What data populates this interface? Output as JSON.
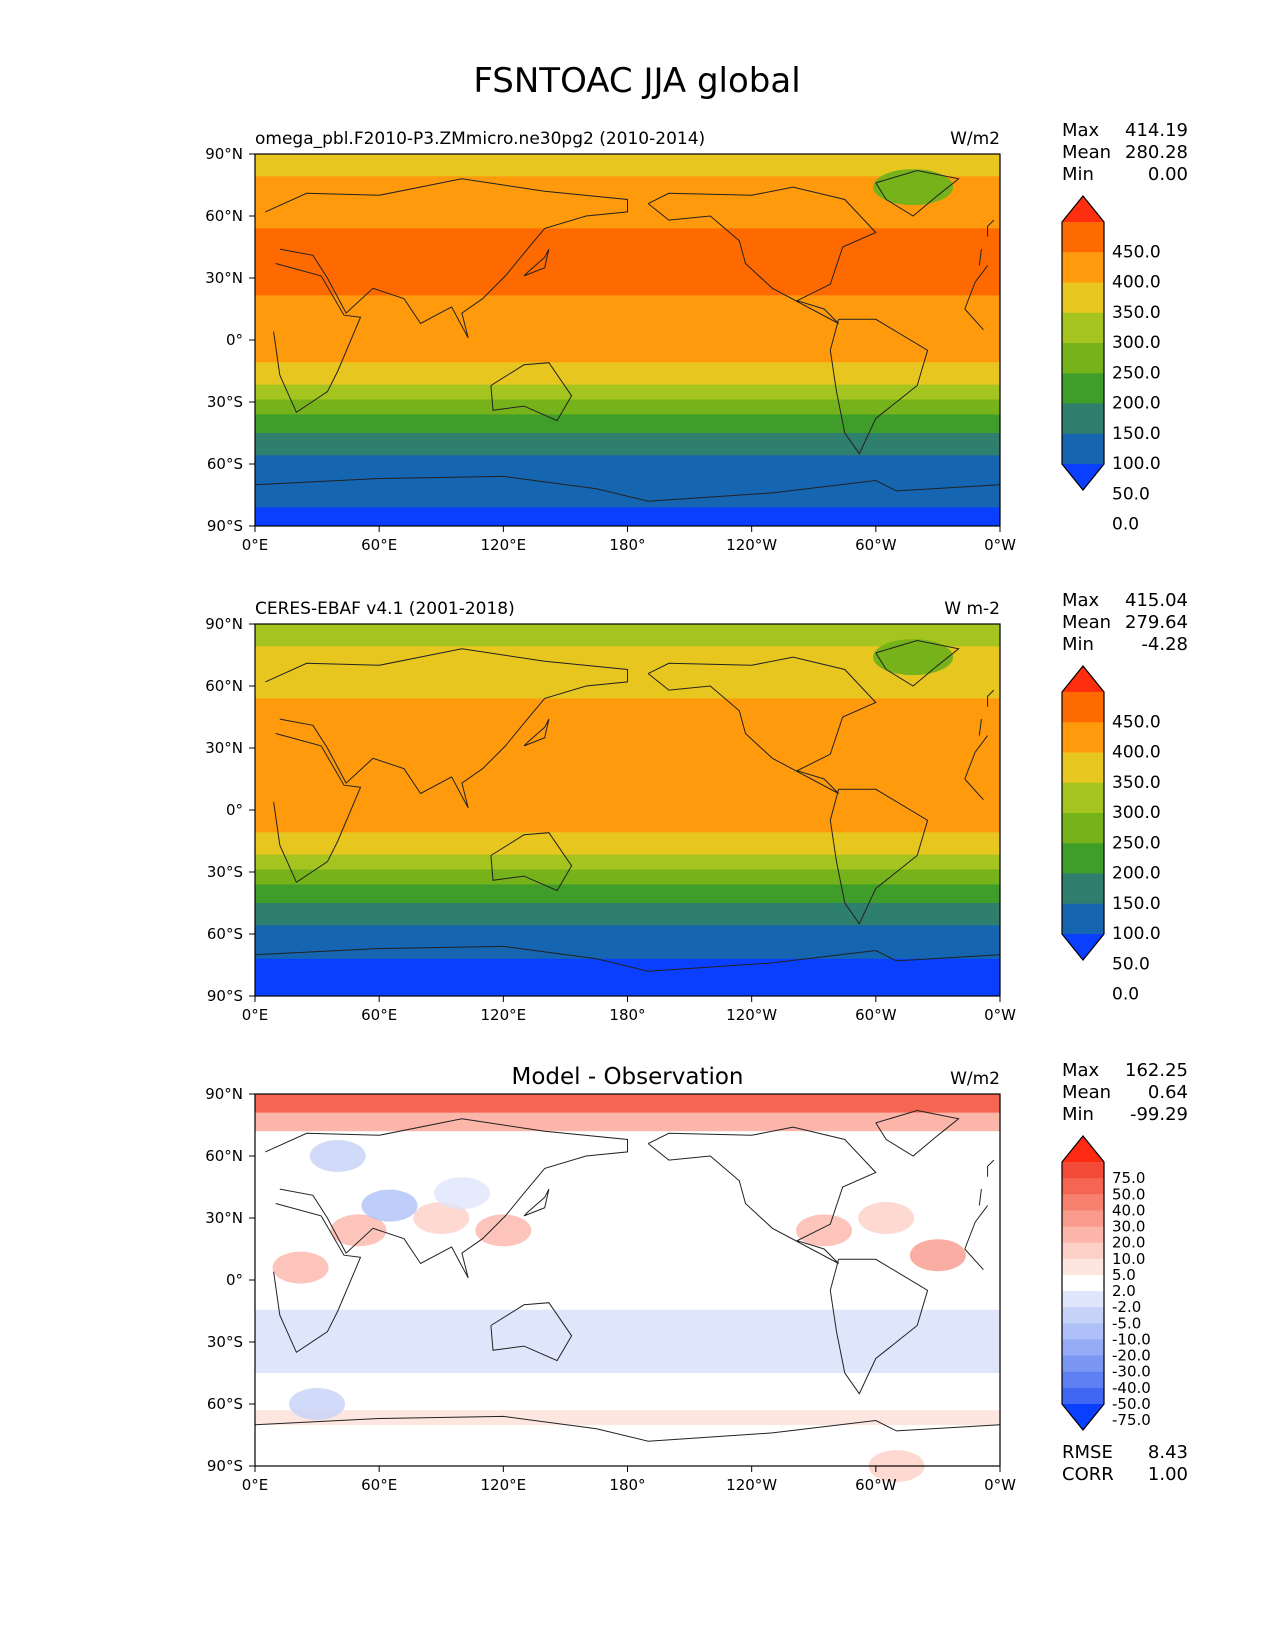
{
  "title": "FSNTOAC JJA global",
  "xticks": [
    "0°E",
    "60°E",
    "120°E",
    "180°",
    "120°W",
    "60°W",
    "0°W"
  ],
  "yticks": [
    "90°N",
    "60°N",
    "30°N",
    "0°",
    "30°S",
    "60°S",
    "90°S"
  ],
  "panels": [
    {
      "left_title": "omega_pbl.F2010-P3.ZMmicro.ne30pg2 (2010-2014)",
      "center_title": "",
      "units": "W/m2",
      "stats": [
        {
          "label": "Max",
          "value": "414.19"
        },
        {
          "label": "Mean",
          "value": "280.28"
        },
        {
          "label": "Min",
          "value": "0.00"
        }
      ],
      "colorbar": {
        "labels": [
          "450.0",
          "400.0",
          "350.0",
          "300.0",
          "250.0",
          "200.0",
          "150.0",
          "100.0",
          "50.0",
          "0.0"
        ],
        "colors": [
          "#ff2e0f",
          "#ff6a00",
          "#ff9a0d",
          "#e8c620",
          "#a6c41f",
          "#76b21a",
          "#3f9e2a",
          "#2f7f6e",
          "#1565b0",
          "#0a3fff"
        ]
      },
      "extra_stats": []
    },
    {
      "left_title": "CERES-EBAF v4.1 (2001-2018)",
      "center_title": "",
      "units": "W m-2",
      "stats": [
        {
          "label": "Max",
          "value": "415.04"
        },
        {
          "label": "Mean",
          "value": "279.64"
        },
        {
          "label": "Min",
          "value": "-4.28"
        }
      ],
      "colorbar": {
        "labels": [
          "450.0",
          "400.0",
          "350.0",
          "300.0",
          "250.0",
          "200.0",
          "150.0",
          "100.0",
          "50.0",
          "0.0"
        ],
        "colors": [
          "#ff2e0f",
          "#ff6a00",
          "#ff9a0d",
          "#e8c620",
          "#a6c41f",
          "#76b21a",
          "#3f9e2a",
          "#2f7f6e",
          "#1565b0",
          "#0a3fff"
        ]
      },
      "extra_stats": []
    },
    {
      "left_title": "",
      "center_title": "Model - Observation",
      "units": "W/m2",
      "stats": [
        {
          "label": "Max",
          "value": "162.25"
        },
        {
          "label": "Mean",
          "value": "0.64"
        },
        {
          "label": "Min",
          "value": "-99.29"
        }
      ],
      "colorbar": {
        "labels": [
          "75.0",
          "50.0",
          "40.0",
          "30.0",
          "20.0",
          "10.0",
          "5.0",
          "2.0",
          "-2.0",
          "-5.0",
          "-10.0",
          "-20.0",
          "-30.0",
          "-40.0",
          "-50.0",
          "-75.0"
        ],
        "colors": [
          "#ff2a12",
          "#f44a38",
          "#f66552",
          "#f7806f",
          "#f99a8c",
          "#fbb5a9",
          "#fcd0c6",
          "#fde6e0",
          "#ffffff",
          "#dfe6fb",
          "#c6d2f8",
          "#aec0f7",
          "#95abf5",
          "#7b96f3",
          "#5f80f2",
          "#3f67f3",
          "#0a3fff"
        ]
      },
      "extra_stats": [
        {
          "label": "RMSE",
          "value": "8.43"
        },
        {
          "label": "CORR",
          "value": "1.00"
        }
      ]
    }
  ]
}
